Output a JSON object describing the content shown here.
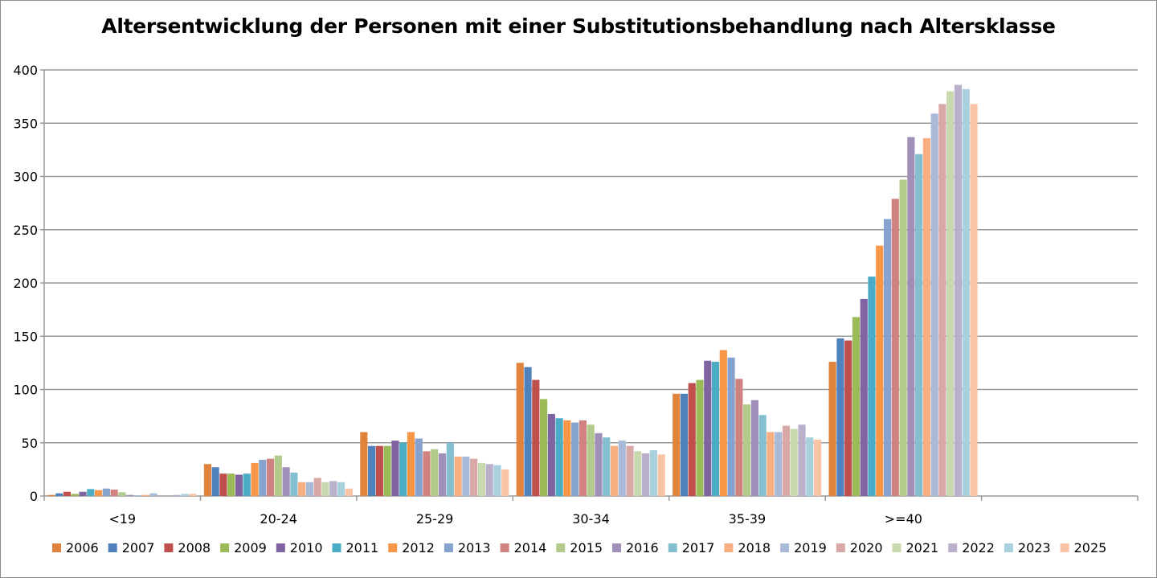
{
  "chart_data": {
    "type": "bar",
    "title": "Altersentwicklung der Personen mit einer Substitutionsbehandlung nach Altersklasse",
    "xlabel": "",
    "ylabel": "",
    "ylim": [
      0,
      400
    ],
    "yticks": [
      0,
      50,
      100,
      150,
      200,
      250,
      300,
      350,
      400
    ],
    "grid": true,
    "legend_position": "bottom",
    "categories": [
      "<19",
      "20-24",
      "25-29",
      "30-34",
      "35-39",
      ">=40",
      ""
    ],
    "series": [
      {
        "name": "2006",
        "color": "#E0843D",
        "values": [
          1,
          30,
          60,
          125,
          96,
          126,
          null
        ]
      },
      {
        "name": "2007",
        "color": "#4F81BD",
        "values": [
          2.5,
          27,
          47,
          121,
          96,
          148,
          null
        ]
      },
      {
        "name": "2008",
        "color": "#C0504D",
        "values": [
          4,
          21,
          47,
          109,
          106,
          146,
          null
        ]
      },
      {
        "name": "2009",
        "color": "#9BBB59",
        "values": [
          2,
          21,
          47,
          91,
          109,
          168,
          null
        ]
      },
      {
        "name": "2010",
        "color": "#8064A2",
        "values": [
          4,
          20,
          52,
          77,
          127,
          185,
          null
        ]
      },
      {
        "name": "2011",
        "color": "#4BACC6",
        "values": [
          6.5,
          21,
          50,
          73,
          126,
          206,
          null
        ]
      },
      {
        "name": "2012",
        "color": "#F79646",
        "values": [
          5.5,
          31,
          60,
          71,
          137,
          235,
          null
        ]
      },
      {
        "name": "2013",
        "color": "#86A2CE",
        "values": [
          7,
          34,
          54,
          69,
          130,
          260,
          null
        ]
      },
      {
        "name": "2014",
        "color": "#CF827F",
        "values": [
          6,
          35,
          42,
          71,
          110,
          279,
          null
        ]
      },
      {
        "name": "2015",
        "color": "#B3CB8A",
        "values": [
          3.5,
          38,
          44,
          67,
          86,
          297,
          null
        ]
      },
      {
        "name": "2016",
        "color": "#A08FB8",
        "values": [
          1,
          27,
          40,
          59,
          90,
          337,
          null
        ]
      },
      {
        "name": "2017",
        "color": "#84BFD1",
        "values": [
          0.5,
          22,
          50,
          55,
          76,
          321,
          null
        ]
      },
      {
        "name": "2018",
        "color": "#F8AE80",
        "values": [
          1,
          13,
          37,
          47,
          60,
          336,
          null
        ]
      },
      {
        "name": "2019",
        "color": "#A9BAD9",
        "values": [
          2.5,
          13,
          37,
          52,
          60,
          359,
          null
        ]
      },
      {
        "name": "2020",
        "color": "#D9A9A8",
        "values": [
          0,
          17,
          35,
          47,
          66,
          368,
          null
        ]
      },
      {
        "name": "2021",
        "color": "#C8D8AF",
        "values": [
          0,
          13,
          31,
          42,
          63,
          380,
          null
        ]
      },
      {
        "name": "2022",
        "color": "#BAB0CB",
        "values": [
          1,
          14,
          30,
          40,
          67,
          386,
          null
        ]
      },
      {
        "name": "2023",
        "color": "#A9D0DD",
        "values": [
          2,
          13,
          29,
          43,
          55,
          382,
          null
        ]
      },
      {
        "name": "2025",
        "color": "#F9C3A5",
        "values": [
          2,
          7,
          25,
          39,
          53,
          368,
          null
        ]
      }
    ]
  }
}
